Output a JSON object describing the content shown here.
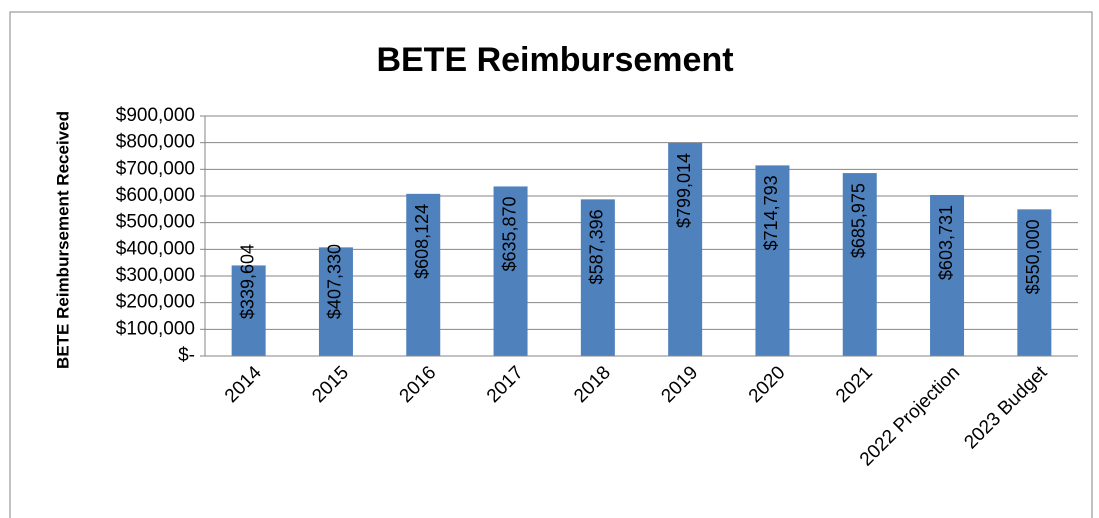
{
  "chart_data": {
    "type": "bar",
    "title": "BETE Reimbursement",
    "y_label": "BETE Reimbursement Received",
    "categories": [
      "2014",
      "2015",
      "2016",
      "2017",
      "2018",
      "2019",
      "2020",
      "2021",
      "2022 Projection",
      "2023 Budget"
    ],
    "values": [
      339604,
      407330,
      608124,
      635870,
      587396,
      799014,
      714793,
      685975,
      603731,
      550000
    ],
    "value_labels": [
      "$339,604",
      "$407,330",
      "$608,124",
      "$635,870",
      "$587,396",
      "$799,014",
      "$714,793",
      "$685,975",
      "$603,731",
      "$550,000"
    ],
    "color": "#4f81bd",
    "ylim": [
      0,
      900000
    ],
    "yticks": [
      {
        "value": 0,
        "label": "$-"
      },
      {
        "value": 100000,
        "label": "$100,000"
      },
      {
        "value": 200000,
        "label": "$200,000"
      },
      {
        "value": 300000,
        "label": "$300,000"
      },
      {
        "value": 400000,
        "label": "$400,000"
      },
      {
        "value": 500000,
        "label": "$500,000"
      },
      {
        "value": 600000,
        "label": "$600,000"
      },
      {
        "value": 700000,
        "label": "$700,000"
      },
      {
        "value": 800000,
        "label": "$800,000"
      },
      {
        "value": 900000,
        "label": "$900,000"
      }
    ],
    "grid": true
  }
}
